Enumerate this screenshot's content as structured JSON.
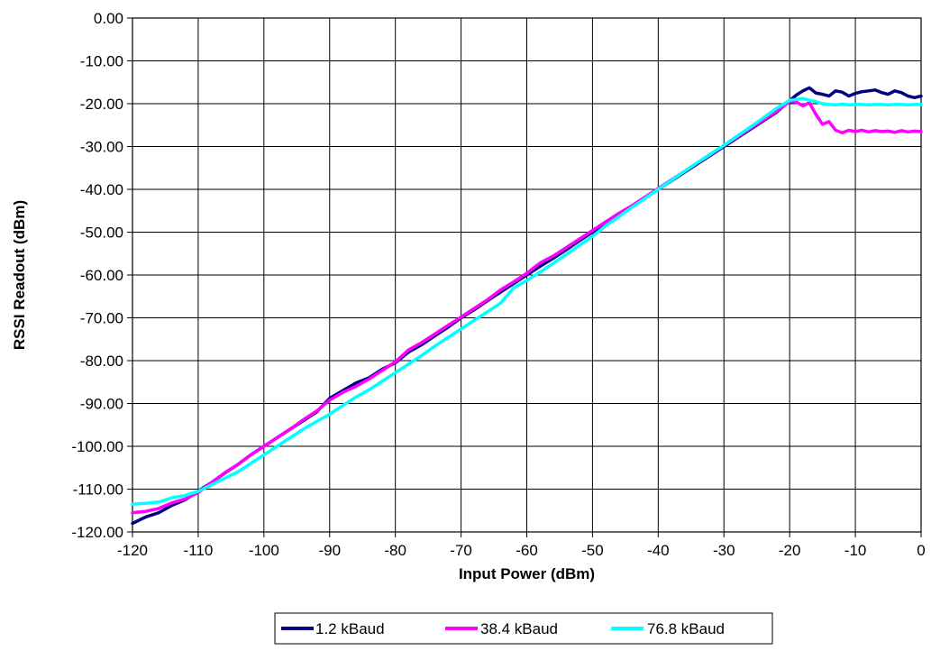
{
  "chart_data": {
    "type": "line",
    "xlabel": "Input Power (dBm)",
    "ylabel": "RSSI Readout (dBm)",
    "xlim": [
      -120,
      0
    ],
    "ylim": [
      -120,
      0
    ],
    "x_ticks": [
      "-120",
      "-110",
      "-100",
      "-90",
      "-80",
      "-70",
      "-60",
      "-50",
      "-40",
      "-30",
      "-20",
      "-10",
      "0"
    ],
    "y_ticks": [
      "0.00",
      "-10.00",
      "-20.00",
      "-30.00",
      "-40.00",
      "-50.00",
      "-60.00",
      "-70.00",
      "-80.00",
      "-90.00",
      "-100.00",
      "-110.00",
      "-120.00"
    ],
    "grid": true,
    "legend_position": "bottom",
    "series": [
      {
        "name": "1.2 kBaud",
        "color": "#000080",
        "x": [
          -120,
          -118,
          -116,
          -114,
          -112,
          -110,
          -108,
          -106,
          -104,
          -102,
          -100,
          -98,
          -96,
          -94,
          -92,
          -90,
          -88,
          -86,
          -84,
          -82,
          -80,
          -78,
          -76,
          -74,
          -72,
          -70,
          -68,
          -66,
          -64,
          -62,
          -60,
          -58,
          -56,
          -54,
          -52,
          -50,
          -48,
          -46,
          -44,
          -42,
          -40,
          -38,
          -36,
          -34,
          -32,
          -30,
          -28,
          -26,
          -24,
          -22,
          -20,
          -19,
          -18,
          -17,
          -16,
          -15,
          -14,
          -13,
          -12,
          -11,
          -10,
          -9,
          -8,
          -7,
          -6,
          -5,
          -4,
          -3,
          -2,
          -1,
          0
        ],
        "y": [
          -118,
          -116.5,
          -115.5,
          -113.8,
          -112.5,
          -110.5,
          -108.5,
          -106.3,
          -104.3,
          -102,
          -100,
          -98,
          -96,
          -94,
          -92,
          -88.8,
          -87,
          -85.2,
          -84,
          -82,
          -80.5,
          -78,
          -76.3,
          -74.2,
          -72.2,
          -70,
          -68.1,
          -66,
          -64,
          -62,
          -60,
          -58,
          -56.1,
          -54.1,
          -52,
          -50,
          -48,
          -46.1,
          -44,
          -42,
          -40,
          -38,
          -36,
          -34,
          -32,
          -30,
          -28,
          -26,
          -24,
          -22,
          -19.3,
          -18,
          -17,
          -16.3,
          -17.5,
          -17.8,
          -18.2,
          -17,
          -17.3,
          -18.2,
          -17.6,
          -17.2,
          -17,
          -16.8,
          -17.4,
          -17.8,
          -17,
          -17.4,
          -18.2,
          -18.6,
          -18.2
        ]
      },
      {
        "name": "38.4 kBaud",
        "color": "#ff00ff",
        "x": [
          -120,
          -118,
          -116,
          -114,
          -112,
          -110,
          -108,
          -106,
          -104,
          -102,
          -100,
          -98,
          -96,
          -94,
          -92,
          -90,
          -88,
          -86,
          -84,
          -82,
          -80,
          -78,
          -76,
          -74,
          -72,
          -70,
          -68,
          -66,
          -64,
          -62,
          -60,
          -58,
          -56,
          -54,
          -52,
          -50,
          -48,
          -46,
          -44,
          -42,
          -40,
          -38,
          -36,
          -34,
          -32,
          -30,
          -28,
          -26,
          -24,
          -22,
          -20,
          -19,
          -18,
          -17,
          -16,
          -15,
          -14,
          -13,
          -12,
          -11,
          -10,
          -9,
          -8,
          -7,
          -6,
          -5,
          -4,
          -3,
          -2,
          -1,
          0
        ],
        "y": [
          -115.5,
          -115.2,
          -114.5,
          -113.2,
          -112.3,
          -110.8,
          -108.5,
          -106.2,
          -104.3,
          -102,
          -100,
          -98,
          -96,
          -93.8,
          -91.8,
          -89.2,
          -87.4,
          -86,
          -84.3,
          -82.3,
          -80.3,
          -77.5,
          -75.8,
          -73.8,
          -71.8,
          -69.8,
          -67.8,
          -65.8,
          -63.5,
          -61.6,
          -59.6,
          -57.2,
          -55.6,
          -53.6,
          -51.6,
          -49.6,
          -47.6,
          -45.6,
          -43.8,
          -41.8,
          -39.8,
          -37.8,
          -35.8,
          -33.8,
          -31.8,
          -29.8,
          -27.8,
          -25.8,
          -23.8,
          -21.8,
          -19.5,
          -19.6,
          -20.5,
          -19.8,
          -22.5,
          -24.8,
          -24.2,
          -26.2,
          -26.8,
          -26.2,
          -26.5,
          -26.2,
          -26.6,
          -26.3,
          -26.5,
          -26.4,
          -26.7,
          -26.3,
          -26.6,
          -26.4,
          -26.5
        ]
      },
      {
        "name": "76.8 kBaud",
        "color": "#00ffff",
        "x": [
          -120,
          -118,
          -116,
          -114,
          -112,
          -110,
          -108,
          -106,
          -104,
          -102,
          -100,
          -98,
          -96,
          -94,
          -92,
          -90,
          -88,
          -86,
          -84,
          -82,
          -80,
          -78,
          -76,
          -74,
          -72,
          -70,
          -68,
          -66,
          -64,
          -62,
          -60,
          -58,
          -56,
          -54,
          -52,
          -50,
          -48,
          -46,
          -44,
          -42,
          -40,
          -38,
          -36,
          -34,
          -32,
          -30,
          -28,
          -26,
          -24,
          -22,
          -20,
          -19,
          -18,
          -17,
          -16,
          -15,
          -14,
          -13,
          -12,
          -11,
          -10,
          -9,
          -8,
          -7,
          -6,
          -5,
          -4,
          -3,
          -2,
          -1,
          0
        ],
        "y": [
          -113.5,
          -113.3,
          -113,
          -112,
          -111.5,
          -110.5,
          -109,
          -107.5,
          -106,
          -104,
          -102,
          -100,
          -98,
          -96,
          -94.2,
          -92.5,
          -90.5,
          -88.5,
          -86.8,
          -84.8,
          -82.8,
          -80.8,
          -78.8,
          -76.6,
          -74.6,
          -72.6,
          -70.6,
          -68.6,
          -66.6,
          -63,
          -61.3,
          -59.3,
          -57.3,
          -55.2,
          -53.1,
          -51,
          -48.5,
          -46.4,
          -44.2,
          -42.1,
          -40,
          -37.9,
          -35.8,
          -33.7,
          -31.7,
          -29.7,
          -27.6,
          -25.5,
          -23.3,
          -21.1,
          -19.2,
          -19,
          -18.8,
          -19.2,
          -19.5,
          -20,
          -20.2,
          -20.3,
          -20.1,
          -20.3,
          -20.2,
          -20.2,
          -20.3,
          -20.2,
          -20.2,
          -20.3,
          -20.2,
          -20.2,
          -20.3,
          -20.2,
          -20.2
        ]
      }
    ]
  }
}
